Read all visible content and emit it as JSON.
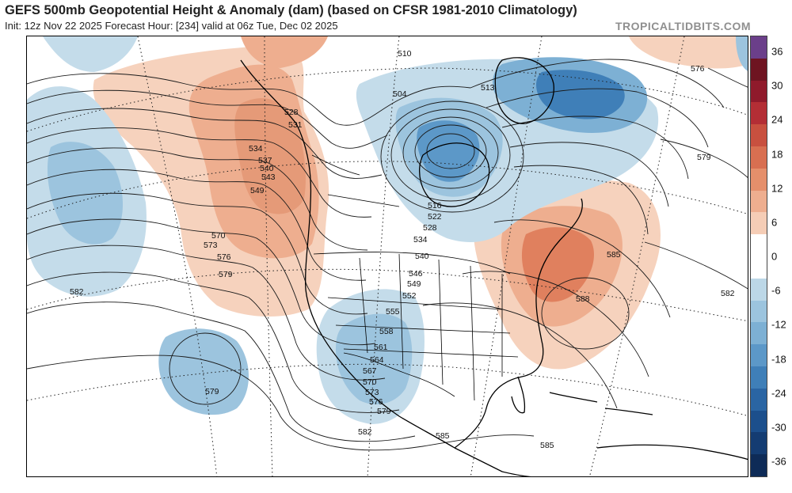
{
  "header": {
    "title": "GEFS 500mb Geopotential Height & Anomaly (dam) (based on CFSR 1981-2010 Climatology)",
    "subtitle": "Init: 12z Nov 22 2025   Forecast Hour: [234]   valid at 06z Tue, Dec 02 2025",
    "brand": "TROPICALTIDBITS.COM"
  },
  "colorbar": {
    "ticks": [
      "36",
      "30",
      "24",
      "18",
      "12",
      "6",
      "0",
      "-6",
      "-12",
      "-18",
      "-24",
      "-30",
      "-36"
    ],
    "colors": [
      "#6b3f8a",
      "#6e1421",
      "#8f1a2b",
      "#b32e35",
      "#c8503f",
      "#d86f51",
      "#e58f6b",
      "#eeae8f",
      "#f5cdb6",
      "#ffffff",
      "#ffffff",
      "#bcd7e7",
      "#9cc4de",
      "#7db0d4",
      "#5c98c8",
      "#3f7fb8",
      "#2a65a3",
      "#1c4f8c",
      "#143c72",
      "#0e2b57"
    ]
  },
  "map": {
    "contour_labels": [
      "510",
      "513",
      "504",
      "516",
      "522",
      "528",
      "534",
      "540",
      "546",
      "549",
      "552",
      "555",
      "558",
      "561",
      "564",
      "567",
      "570",
      "573",
      "576",
      "579",
      "528",
      "531",
      "534",
      "537",
      "540",
      "543",
      "549",
      "570",
      "573",
      "576",
      "579",
      "582",
      "579",
      "576",
      "579",
      "582",
      "585",
      "582",
      "588",
      "585",
      "585"
    ],
    "anomaly_colors": {
      "positive_light": "#f6d2bd",
      "positive_mid": "#eeae8f",
      "positive_strong": "#e0805e",
      "negative_light": "#c4dcea",
      "negative_mid": "#9cc4de",
      "negative_strong": "#5c98c8",
      "negative_deep": "#2f6ea9"
    }
  }
}
